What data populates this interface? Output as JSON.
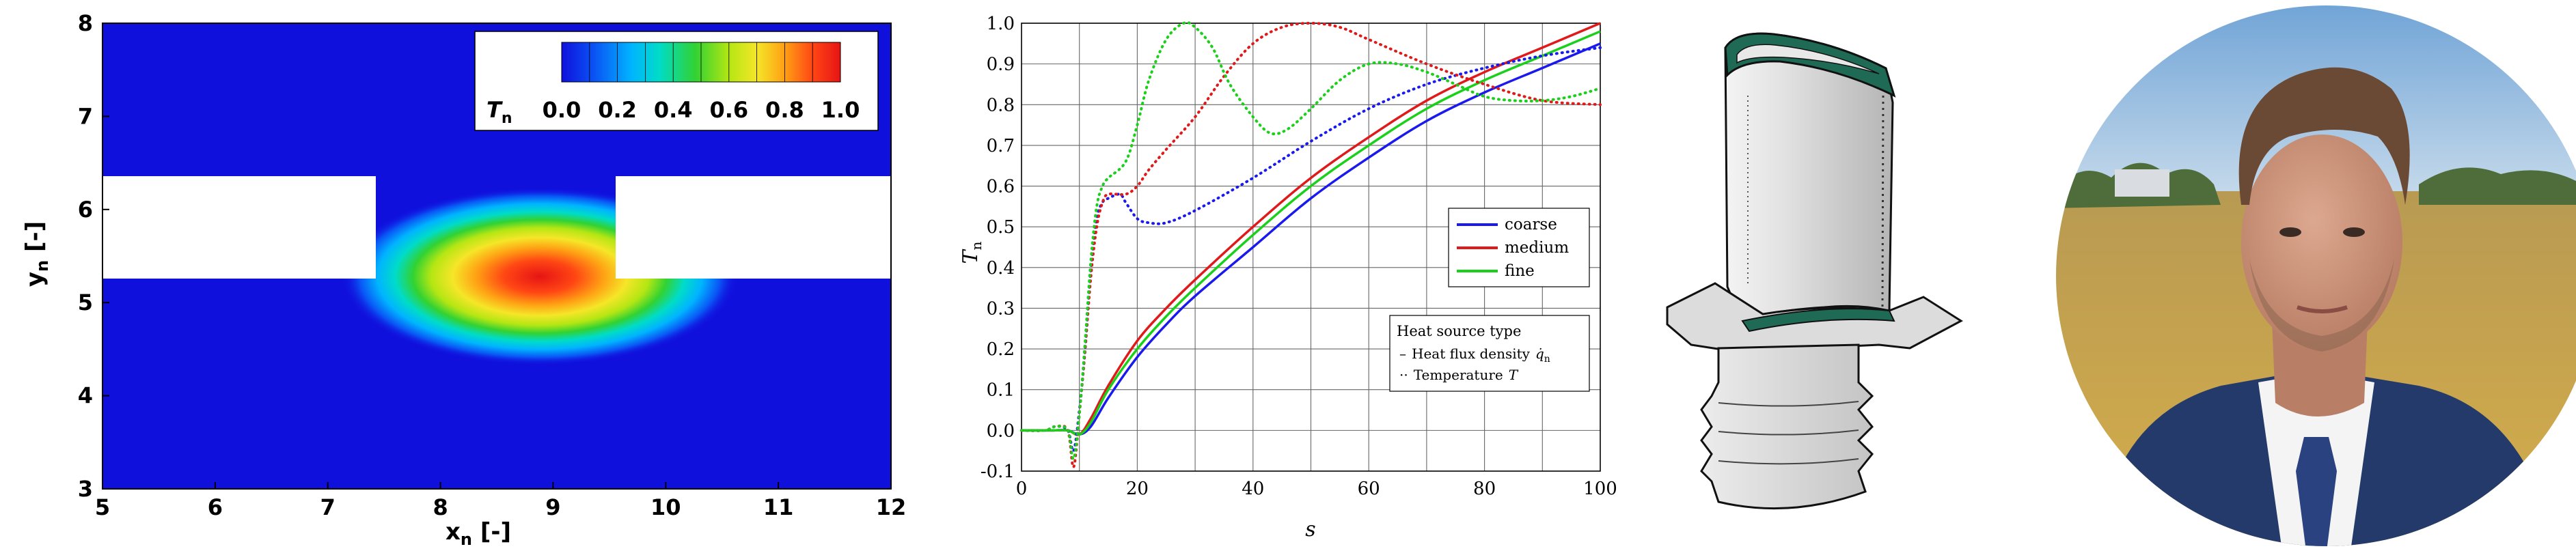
{
  "contour_plot": {
    "title": "",
    "xlabel": "x",
    "xlabel_sub": "n",
    "xlabel_unit": " [-]",
    "ylabel": "y",
    "ylabel_sub": "n",
    "ylabel_unit": " [-]",
    "xlim": [
      5,
      12
    ],
    "ylim": [
      3,
      8
    ],
    "x_ticks": [
      "5",
      "6",
      "7",
      "8",
      "9",
      "10",
      "11",
      "12"
    ],
    "y_ticks": [
      "3",
      "4",
      "5",
      "6",
      "7",
      "8"
    ],
    "colorbar": {
      "label": "T",
      "label_sub": "n",
      "ticks": [
        "0.0",
        "0.2",
        "0.4",
        "0.6",
        "0.8",
        "1.0"
      ],
      "range": [
        0,
        1
      ]
    },
    "colormap": [
      "#1010dd",
      "#0a55f5",
      "#00b4ff",
      "#00dcc8",
      "#32d232",
      "#b4e614",
      "#f5e628",
      "#ffa014",
      "#ff4614",
      "#e61414"
    ],
    "solid_regions_white": true
  },
  "chart_data": {
    "type": "line",
    "title": "",
    "xlabel": "s",
    "ylabel": "T",
    "ylabel_sub": "n",
    "xlim": [
      0,
      100
    ],
    "ylim": [
      -0.1,
      1.0
    ],
    "x_ticks": [
      "0",
      "20",
      "40",
      "60",
      "80",
      "100"
    ],
    "y_ticks": [
      "-0.1",
      "0.0",
      "0.1",
      "0.2",
      "0.3",
      "0.4",
      "0.5",
      "0.6",
      "0.7",
      "0.8",
      "0.9",
      "1.0"
    ],
    "grid": true,
    "legend_mesh": {
      "placement": "middle-right",
      "entries": [
        {
          "name": "coarse",
          "color": "#1a1aee"
        },
        {
          "name": "medium",
          "color": "#e01a1a"
        },
        {
          "name": "fine",
          "color": "#1ad01a"
        }
      ]
    },
    "legend_source": {
      "placement": "lower-right",
      "title": "Heat source type",
      "entries": [
        {
          "marker": "–",
          "text": "Heat flux density",
          "symbol": "q̇",
          "symbol_sub": "n"
        },
        {
          "marker": "··",
          "text": "Temperature",
          "symbol": "T",
          "symbol_sub": ""
        }
      ]
    },
    "series": [
      {
        "name": "coarse",
        "style": "solid",
        "color": "#1a1aee",
        "x": [
          0,
          5,
          8,
          10,
          12,
          15,
          20,
          25,
          30,
          40,
          50,
          60,
          70,
          80,
          90,
          100
        ],
        "y": [
          0,
          0,
          0,
          -0.01,
          0.01,
          0.08,
          0.18,
          0.26,
          0.33,
          0.45,
          0.57,
          0.67,
          0.76,
          0.83,
          0.89,
          0.95
        ]
      },
      {
        "name": "medium",
        "style": "solid",
        "color": "#e01a1a",
        "x": [
          0,
          5,
          8,
          10,
          12,
          15,
          20,
          25,
          30,
          40,
          50,
          60,
          70,
          80,
          90,
          100
        ],
        "y": [
          0,
          0,
          0,
          -0.01,
          0.03,
          0.11,
          0.22,
          0.3,
          0.37,
          0.5,
          0.62,
          0.72,
          0.81,
          0.88,
          0.94,
          1.0
        ]
      },
      {
        "name": "fine",
        "style": "solid",
        "color": "#1ad01a",
        "x": [
          0,
          5,
          8,
          10,
          12,
          15,
          20,
          25,
          30,
          40,
          50,
          60,
          70,
          80,
          90,
          100
        ],
        "y": [
          0,
          0,
          0,
          -0.01,
          0.02,
          0.1,
          0.2,
          0.28,
          0.35,
          0.48,
          0.6,
          0.7,
          0.79,
          0.86,
          0.92,
          0.98
        ]
      },
      {
        "name": "coarse",
        "style": "dotted",
        "color": "#1a1aee",
        "x": [
          0,
          4,
          6,
          8,
          9,
          10,
          11,
          12,
          13,
          14,
          15,
          17,
          18,
          20,
          22,
          25,
          30,
          40,
          50,
          60,
          70,
          80,
          90,
          100
        ],
        "y": [
          0,
          0,
          0.01,
          0,
          -0.05,
          0.05,
          0.2,
          0.4,
          0.52,
          0.56,
          0.57,
          0.58,
          0.56,
          0.52,
          0.51,
          0.51,
          0.54,
          0.62,
          0.71,
          0.79,
          0.85,
          0.89,
          0.92,
          0.94
        ]
      },
      {
        "name": "medium",
        "style": "dotted",
        "color": "#e01a1a",
        "x": [
          0,
          4,
          6,
          8,
          9,
          10,
          11,
          12,
          13,
          14,
          15,
          18,
          20,
          22,
          25,
          30,
          35,
          40,
          45,
          50,
          55,
          60,
          70,
          80,
          90,
          100
        ],
        "y": [
          0,
          0,
          0.01,
          0,
          -0.09,
          0.04,
          0.2,
          0.38,
          0.5,
          0.56,
          0.58,
          0.58,
          0.6,
          0.64,
          0.69,
          0.77,
          0.87,
          0.95,
          0.99,
          1.0,
          0.99,
          0.96,
          0.9,
          0.85,
          0.81,
          0.8
        ]
      },
      {
        "name": "fine",
        "style": "dotted",
        "color": "#1ad01a",
        "x": [
          0,
          4,
          6,
          8,
          9,
          10,
          11,
          12,
          13,
          14,
          15,
          18,
          20,
          22,
          25,
          28,
          30,
          33,
          36,
          40,
          43,
          46,
          50,
          55,
          60,
          65,
          70,
          75,
          80,
          85,
          90,
          95,
          100
        ],
        "y": [
          0,
          0,
          0.01,
          0,
          -0.07,
          0.04,
          0.22,
          0.42,
          0.55,
          0.6,
          0.62,
          0.66,
          0.75,
          0.86,
          0.96,
          1.0,
          0.99,
          0.94,
          0.85,
          0.77,
          0.73,
          0.74,
          0.79,
          0.86,
          0.9,
          0.9,
          0.88,
          0.85,
          0.82,
          0.81,
          0.81,
          0.82,
          0.84
        ]
      }
    ]
  },
  "blade_illustration": {
    "icon": "turbine-blade-icon",
    "colors": {
      "outline": "#111111",
      "body": "#d2d2d2",
      "highlight": "#f2f2f2",
      "coating": "#1e6a55"
    }
  },
  "portrait_photo": {
    "icon": "person-portrait-icon",
    "colors": {
      "sky": "#8fb8dd",
      "field": "#caa547",
      "trees": "#4f6d3a",
      "suit": "#243a6a",
      "shirt": "#f4f4f4",
      "tie": "#2a4280",
      "skin": "#c9937a",
      "hair": "#6a4a34"
    }
  }
}
